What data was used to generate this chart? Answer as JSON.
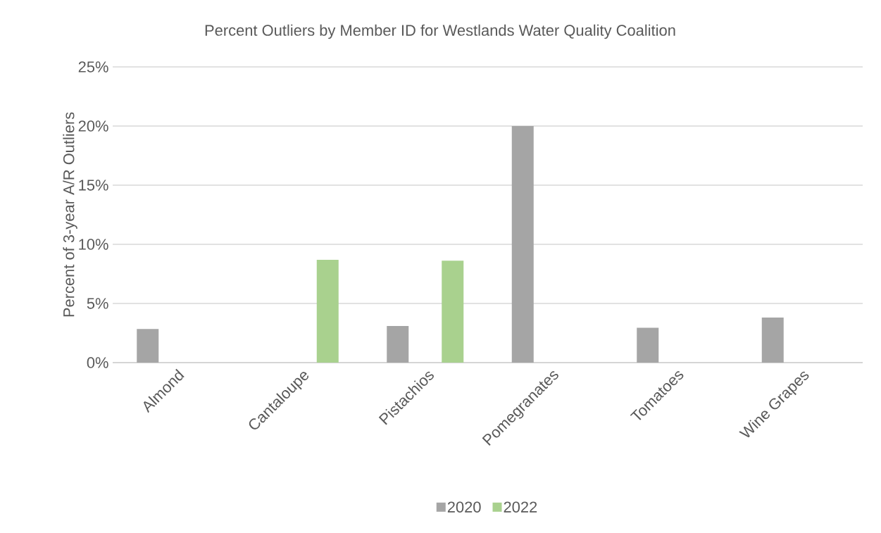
{
  "chart_data": {
    "type": "bar",
    "title": "Percent Outliers by Member ID for Westlands Water Quality Coalition",
    "ylabel": "Percent of 3-year A/R Outliers",
    "categories": [
      "Almond",
      "Cantaloupe",
      "Pistachios",
      "Pomegranates",
      "Tomatoes",
      "Wine Grapes"
    ],
    "series": [
      {
        "name": "2020",
        "color": "#a5a5a5",
        "values": [
          2.84,
          null,
          3.1,
          20.0,
          2.94,
          3.81
        ]
      },
      {
        "name": "2022",
        "color": "#a9d18e",
        "values": [
          null,
          8.69,
          8.62,
          null,
          null,
          null
        ]
      }
    ],
    "ylim": [
      0,
      25
    ],
    "yticks": [
      {
        "value": 0,
        "label": "0%"
      },
      {
        "value": 5,
        "label": "5%"
      },
      {
        "value": 10,
        "label": "10%"
      },
      {
        "value": 15,
        "label": "15%"
      },
      {
        "value": 20,
        "label": "20%"
      },
      {
        "value": 25,
        "label": "25%"
      }
    ],
    "grid": "y",
    "legend": "bottom"
  }
}
